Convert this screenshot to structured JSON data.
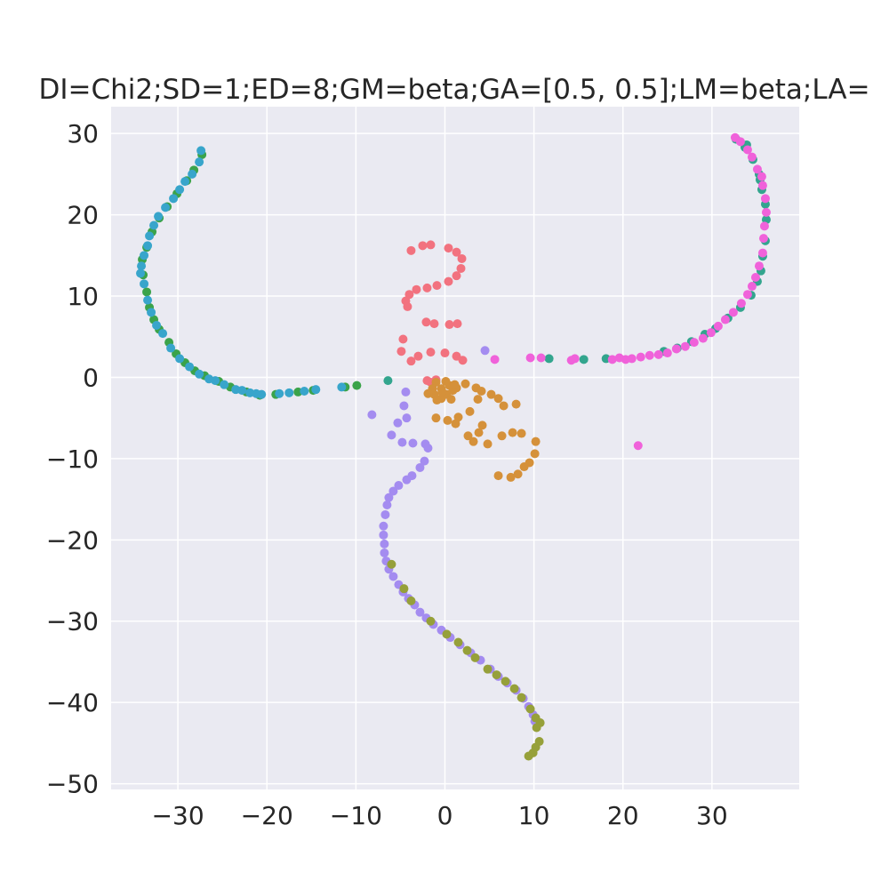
{
  "chart_data": {
    "type": "scatter",
    "title": "DI=Chi2;SD=1;ED=8;GM=beta;GA=[0.5, 0.5];LM=beta;LA=",
    "xlabel": "",
    "ylabel": "",
    "xlim": [
      -37.5,
      39.8
    ],
    "ylim": [
      -50.7,
      33.3
    ],
    "xticks": [
      -30,
      -20,
      -10,
      0,
      10,
      20,
      30
    ],
    "yticks": [
      30,
      20,
      10,
      0,
      -10,
      -20,
      -30,
      -40,
      -50
    ],
    "xtick_labels": [
      "−30",
      "−20",
      "−10",
      "0",
      "10",
      "20",
      "30"
    ],
    "ytick_labels": [
      "30",
      "20",
      "10",
      "0",
      "−10",
      "−20",
      "−30",
      "−40",
      "−50"
    ],
    "grid": true,
    "legend": "none",
    "background": "#eaeaf2",
    "grid_color": "#ffffff",
    "series": [
      {
        "color": "#f2727f",
        "points": [
          [
            -2.5,
            16.2
          ],
          [
            -1.6,
            16.3
          ],
          [
            -3.8,
            15.6
          ],
          [
            0.4,
            15.9
          ],
          [
            1.3,
            15.4
          ],
          [
            1.9,
            14.6
          ],
          [
            1.8,
            13.4
          ],
          [
            1.3,
            12.5
          ],
          [
            0.4,
            11.8
          ],
          [
            -0.9,
            11.3
          ],
          [
            -2.0,
            11.0
          ],
          [
            -3.2,
            10.8
          ],
          [
            -4.0,
            10.2
          ],
          [
            -4.4,
            9.4
          ],
          [
            -4.2,
            8.7
          ],
          [
            -2.1,
            6.8
          ],
          [
            -1.2,
            6.6
          ],
          [
            0.5,
            6.5
          ],
          [
            1.4,
            6.6
          ],
          [
            -4.7,
            4.7
          ],
          [
            -4.9,
            3.2
          ],
          [
            -3.0,
            2.6
          ],
          [
            -1.6,
            3.1
          ],
          [
            0.0,
            3.0
          ],
          [
            1.3,
            2.6
          ],
          [
            2.0,
            2.1
          ],
          [
            -3.8,
            2.0
          ],
          [
            -1.0,
            -0.3
          ],
          [
            -1.6,
            -0.6
          ],
          [
            -2.0,
            -0.4
          ]
        ]
      },
      {
        "color": "#d5913a",
        "points": [
          [
            0.5,
            -1.0
          ],
          [
            -1.0,
            -0.6
          ],
          [
            -0.4,
            -1.4
          ],
          [
            0.2,
            -2.1
          ],
          [
            -1.2,
            -2.1
          ],
          [
            -0.4,
            -2.6
          ],
          [
            0.9,
            -1.6
          ],
          [
            1.3,
            -1.3
          ],
          [
            -1.4,
            -1.4
          ],
          [
            0.1,
            -0.5
          ],
          [
            1.1,
            -0.9
          ],
          [
            -1.9,
            -2.0
          ],
          [
            -0.9,
            -2.8
          ],
          [
            -0.3,
            -1.8
          ],
          [
            0.7,
            -2.7
          ],
          [
            2.3,
            -0.8
          ],
          [
            3.5,
            -1.3
          ],
          [
            4.1,
            -1.7
          ],
          [
            5.2,
            -2.1
          ],
          [
            6.0,
            -2.6
          ],
          [
            6.6,
            -3.5
          ],
          [
            8.0,
            -3.3
          ],
          [
            3.7,
            -2.7
          ],
          [
            2.8,
            -4.2
          ],
          [
            1.5,
            -4.9
          ],
          [
            0.3,
            -5.3
          ],
          [
            -1.0,
            -5.0
          ],
          [
            1.2,
            -5.7
          ],
          [
            4.2,
            -5.9
          ],
          [
            3.8,
            -6.8
          ],
          [
            2.6,
            -7.2
          ],
          [
            3.2,
            -7.9
          ],
          [
            4.8,
            -8.2
          ],
          [
            6.4,
            -7.2
          ],
          [
            7.6,
            -6.8
          ],
          [
            8.6,
            -6.9
          ],
          [
            10.2,
            -7.9
          ],
          [
            10.1,
            -9.4
          ],
          [
            9.5,
            -10.5
          ],
          [
            8.9,
            -11.0
          ],
          [
            8.2,
            -11.9
          ],
          [
            7.4,
            -12.3
          ],
          [
            6.0,
            -12.1
          ]
        ]
      },
      {
        "color": "#a48cf0",
        "points": [
          [
            -4.4,
            -1.8
          ],
          [
            -4.6,
            -3.5
          ],
          [
            -4.3,
            -5.0
          ],
          [
            -5.3,
            -5.6
          ],
          [
            -8.2,
            -4.6
          ],
          [
            -6.0,
            -7.1
          ],
          [
            -4.8,
            -8.0
          ],
          [
            -3.6,
            -8.1
          ],
          [
            -2.2,
            -8.2
          ],
          [
            -1.9,
            -8.7
          ],
          [
            -2.3,
            -10.3
          ],
          [
            -2.8,
            -11.1
          ],
          [
            -3.7,
            -12.1
          ],
          [
            -4.3,
            -12.6
          ],
          [
            -5.2,
            -13.3
          ],
          [
            -5.8,
            -14.0
          ],
          [
            -6.3,
            -14.8
          ],
          [
            -6.5,
            -15.7
          ],
          [
            -6.7,
            -16.9
          ],
          [
            -6.9,
            -18.3
          ],
          [
            -6.9,
            -19.4
          ],
          [
            -6.8,
            -20.5
          ],
          [
            -6.8,
            -21.6
          ],
          [
            -6.6,
            -22.6
          ],
          [
            -6.3,
            -23.6
          ],
          [
            -5.8,
            -24.5
          ],
          [
            -5.2,
            -25.5
          ],
          [
            -4.7,
            -26.4
          ],
          [
            -4.1,
            -27.2
          ],
          [
            -3.4,
            -28.0
          ],
          [
            -2.8,
            -28.9
          ],
          [
            -2.1,
            -29.6
          ],
          [
            -1.3,
            -30.4
          ],
          [
            -0.4,
            -31.1
          ],
          [
            0.6,
            -32.0
          ],
          [
            1.7,
            -32.9
          ],
          [
            2.9,
            -33.9
          ],
          [
            4.0,
            -34.8
          ],
          [
            5.1,
            -35.9
          ],
          [
            6.0,
            -36.8
          ],
          [
            7.0,
            -37.6
          ],
          [
            8.0,
            -38.5
          ],
          [
            8.8,
            -39.5
          ],
          [
            9.4,
            -40.5
          ],
          [
            9.9,
            -41.5
          ],
          [
            10.1,
            -42.3
          ],
          [
            4.5,
            3.3
          ]
        ]
      },
      {
        "color": "#96a03a",
        "points": [
          [
            -6.0,
            -23.0
          ],
          [
            -4.6,
            -26.0
          ],
          [
            -3.8,
            -27.5
          ],
          [
            -1.6,
            -30.0
          ],
          [
            0.2,
            -31.6
          ],
          [
            1.5,
            -32.6
          ],
          [
            2.5,
            -33.6
          ],
          [
            3.4,
            -34.5
          ],
          [
            4.8,
            -35.9
          ],
          [
            5.8,
            -36.6
          ],
          [
            6.8,
            -37.4
          ],
          [
            7.8,
            -38.3
          ],
          [
            8.6,
            -39.4
          ],
          [
            9.6,
            -40.8
          ],
          [
            10.2,
            -41.9
          ],
          [
            10.7,
            -42.5
          ],
          [
            10.3,
            -43.1
          ],
          [
            10.6,
            -44.8
          ],
          [
            10.2,
            -45.5
          ],
          [
            9.9,
            -46.2
          ],
          [
            9.4,
            -46.6
          ]
        ]
      },
      {
        "color": "#3ba34a",
        "points": [
          [
            -27.3,
            27.4
          ],
          [
            -28.2,
            25.5
          ],
          [
            -29.0,
            24.2
          ],
          [
            -30.1,
            22.6
          ],
          [
            -31.2,
            21.0
          ],
          [
            -32.1,
            19.6
          ],
          [
            -32.9,
            17.9
          ],
          [
            -33.5,
            16.0
          ],
          [
            -34.0,
            14.5
          ],
          [
            -33.9,
            12.6
          ],
          [
            -33.5,
            10.5
          ],
          [
            -33.2,
            8.6
          ],
          [
            -32.7,
            7.1
          ],
          [
            -32.1,
            5.9
          ],
          [
            -31.0,
            4.3
          ],
          [
            -30.2,
            2.9
          ],
          [
            -29.2,
            1.8
          ],
          [
            -28.1,
            0.8
          ],
          [
            -27.0,
            0.2
          ],
          [
            -25.4,
            -0.5
          ],
          [
            -24.1,
            -1.2
          ],
          [
            -22.3,
            -1.8
          ],
          [
            -20.8,
            -2.2
          ],
          [
            -19.0,
            -2.1
          ],
          [
            -16.5,
            -1.8
          ],
          [
            -14.8,
            -1.6
          ],
          [
            -11.2,
            -1.2
          ],
          [
            -9.9,
            -1.0
          ]
        ]
      },
      {
        "color": "#33a58e",
        "points": [
          [
            -6.4,
            -0.4
          ],
          [
            11.7,
            2.3
          ],
          [
            15.6,
            2.2
          ],
          [
            18.1,
            2.3
          ],
          [
            24.6,
            3.2
          ],
          [
            26.1,
            3.6
          ],
          [
            27.7,
            4.4
          ],
          [
            29.2,
            5.3
          ],
          [
            30.4,
            6.0
          ],
          [
            31.8,
            7.3
          ],
          [
            33.2,
            8.6
          ],
          [
            34.4,
            10.1
          ],
          [
            35.1,
            11.8
          ],
          [
            35.5,
            13.1
          ],
          [
            35.7,
            14.9
          ],
          [
            36.0,
            16.8
          ],
          [
            36.1,
            19.4
          ],
          [
            36.0,
            21.3
          ],
          [
            35.6,
            23.1
          ],
          [
            35.3,
            25.0
          ],
          [
            34.6,
            26.8
          ],
          [
            33.7,
            28.3
          ],
          [
            32.7,
            29.3
          ],
          [
            33.9,
            28.6
          ],
          [
            35.4,
            24.3
          ]
        ]
      },
      {
        "color": "#38a5cb",
        "points": [
          [
            -27.4,
            27.9
          ],
          [
            -27.6,
            26.5
          ],
          [
            -28.4,
            25.0
          ],
          [
            -29.2,
            24.1
          ],
          [
            -29.8,
            23.1
          ],
          [
            -30.5,
            22.0
          ],
          [
            -31.4,
            20.9
          ],
          [
            -32.2,
            19.8
          ],
          [
            -32.7,
            18.7
          ],
          [
            -33.2,
            17.4
          ],
          [
            -33.4,
            16.2
          ],
          [
            -33.8,
            15.0
          ],
          [
            -34.1,
            13.7
          ],
          [
            -34.2,
            12.8
          ],
          [
            -33.8,
            11.5
          ],
          [
            -33.4,
            9.5
          ],
          [
            -33.0,
            8.0
          ],
          [
            -32.4,
            6.4
          ],
          [
            -31.7,
            5.4
          ],
          [
            -30.8,
            3.6
          ],
          [
            -29.8,
            2.3
          ],
          [
            -28.7,
            1.3
          ],
          [
            -27.6,
            0.4
          ],
          [
            -26.5,
            -0.2
          ],
          [
            -25.8,
            -0.4
          ],
          [
            -24.8,
            -0.9
          ],
          [
            -23.5,
            -1.5
          ],
          [
            -22.8,
            -1.6
          ],
          [
            -21.9,
            -1.9
          ],
          [
            -21.2,
            -2.0
          ],
          [
            -20.6,
            -2.1
          ],
          [
            -18.6,
            -2.0
          ],
          [
            -17.5,
            -1.9
          ],
          [
            -15.8,
            -1.7
          ],
          [
            -14.5,
            -1.5
          ],
          [
            -11.6,
            -1.2
          ]
        ]
      },
      {
        "color": "#f062da",
        "points": [
          [
            32.6,
            29.5
          ],
          [
            33.2,
            29.0
          ],
          [
            34.0,
            28.0
          ],
          [
            34.5,
            27.1
          ],
          [
            35.1,
            25.6
          ],
          [
            35.6,
            24.7
          ],
          [
            35.7,
            23.6
          ],
          [
            36.0,
            22.0
          ],
          [
            36.1,
            20.3
          ],
          [
            35.9,
            18.6
          ],
          [
            35.8,
            17.1
          ],
          [
            35.7,
            15.3
          ],
          [
            35.3,
            13.7
          ],
          [
            34.9,
            12.3
          ],
          [
            34.5,
            11.2
          ],
          [
            34.0,
            10.2
          ],
          [
            33.3,
            9.1
          ],
          [
            32.4,
            8.0
          ],
          [
            31.5,
            7.1
          ],
          [
            30.7,
            6.3
          ],
          [
            29.9,
            5.5
          ],
          [
            29.0,
            4.8
          ],
          [
            28.0,
            4.3
          ],
          [
            27.0,
            3.8
          ],
          [
            26.0,
            3.5
          ],
          [
            25.0,
            3.0
          ],
          [
            24.0,
            2.8
          ],
          [
            23.0,
            2.7
          ],
          [
            22.0,
            2.5
          ],
          [
            21.0,
            2.3
          ],
          [
            20.3,
            2.2
          ],
          [
            19.6,
            2.4
          ],
          [
            18.8,
            2.2
          ],
          [
            10.8,
            2.4
          ],
          [
            9.6,
            2.4
          ],
          [
            14.6,
            2.3
          ],
          [
            14.2,
            2.1
          ],
          [
            5.6,
            2.2
          ],
          [
            21.7,
            -8.4
          ]
        ]
      }
    ]
  }
}
